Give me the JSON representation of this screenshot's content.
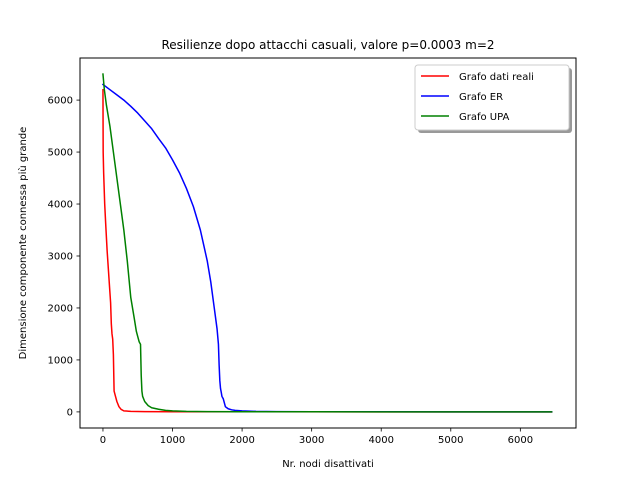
{
  "chart_data": {
    "type": "line",
    "title": "Resilienze dopo attacchi casuali, valore p=0.0003 m=2",
    "xlabel": "Nr. nodi disattivati",
    "ylabel": "Dimensione componente connessa più grande",
    "xlim": [
      -330,
      6800
    ],
    "ylim": [
      -310,
      6810
    ],
    "xticks": [
      0,
      1000,
      2000,
      3000,
      4000,
      5000,
      6000
    ],
    "xtick_labels": [
      "0",
      "1000",
      "2000",
      "3000",
      "4000",
      "5000",
      "6000"
    ],
    "yticks": [
      0,
      1000,
      2000,
      3000,
      4000,
      5000,
      6000
    ],
    "ytick_labels": [
      "0",
      "1000",
      "2000",
      "3000",
      "4000",
      "5000",
      "6000"
    ],
    "grid": false,
    "legend_position": "top-right",
    "series": [
      {
        "name": "Grafo dati reali",
        "color": "#ff0000",
        "x": [
          0,
          3,
          10,
          25,
          40,
          60,
          80,
          100,
          110,
          120,
          130,
          140,
          150,
          160,
          180,
          200,
          230,
          260,
          300,
          400,
          600,
          1000,
          2000,
          4000,
          6450
        ],
        "y": [
          6200,
          5000,
          4600,
          4000,
          3600,
          3100,
          2700,
          2300,
          2100,
          1700,
          1500,
          1400,
          1100,
          400,
          300,
          200,
          100,
          50,
          20,
          10,
          5,
          3,
          2,
          1,
          0
        ]
      },
      {
        "name": "Grafo ER",
        "color": "#0000ff",
        "x": [
          0,
          100,
          200,
          300,
          400,
          500,
          600,
          700,
          800,
          900,
          1000,
          1100,
          1200,
          1300,
          1400,
          1450,
          1500,
          1550,
          1600,
          1620,
          1640,
          1660,
          1670,
          1680,
          1690,
          1700,
          1710,
          1730,
          1760,
          1780,
          1800,
          1850,
          1900,
          2000,
          2200,
          2500,
          3000,
          4000,
          5000,
          6450
        ],
        "y": [
          6300,
          6200,
          6100,
          6000,
          5880,
          5750,
          5600,
          5450,
          5260,
          5080,
          4850,
          4600,
          4300,
          3950,
          3500,
          3200,
          2900,
          2500,
          2000,
          1800,
          1600,
          1300,
          900,
          600,
          450,
          380,
          300,
          250,
          100,
          80,
          60,
          40,
          30,
          20,
          10,
          5,
          3,
          2,
          1,
          0
        ]
      },
      {
        "name": "Grafo UPA",
        "color": "#008000",
        "x": [
          0,
          20,
          50,
          100,
          150,
          200,
          250,
          300,
          350,
          400,
          450,
          480,
          500,
          520,
          540,
          550,
          560,
          570,
          600,
          650,
          700,
          800,
          900,
          1000,
          1200,
          1500,
          2000,
          3000,
          4000,
          5000,
          6450
        ],
        "y": [
          6500,
          6200,
          5900,
          5500,
          5000,
          4500,
          4000,
          3500,
          2900,
          2200,
          1800,
          1550,
          1450,
          1350,
          1300,
          700,
          400,
          300,
          200,
          120,
          80,
          50,
          30,
          20,
          10,
          5,
          3,
          2,
          1,
          0,
          0
        ]
      }
    ]
  }
}
